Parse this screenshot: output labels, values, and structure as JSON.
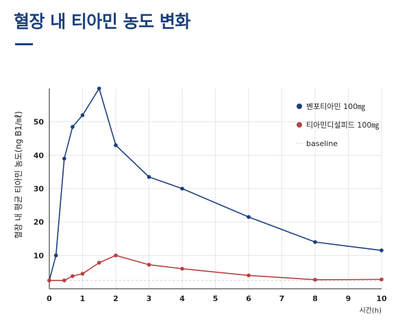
{
  "title": "혈장 내 티아민 농도 변화",
  "chart_data": {
    "type": "line",
    "title": "혈장 내 티아민 농도 변화",
    "xlabel": "시간(h)",
    "ylabel": "혈장 내 평균 티아민 농도(ng B1/㎖)",
    "xlim": [
      0,
      10
    ],
    "ylim": [
      0,
      60
    ],
    "xticks": [
      0,
      1,
      2,
      3,
      4,
      5,
      6,
      7,
      8,
      9,
      10
    ],
    "yticks": [
      10,
      20,
      30,
      40,
      50
    ],
    "grid": true,
    "legend": "top-right",
    "series": [
      {
        "name": "벤포티아민 100㎎",
        "color": "#1b3f7c",
        "points": [
          [
            0,
            2.5
          ],
          [
            0.2,
            10
          ],
          [
            0.45,
            39
          ],
          [
            0.7,
            48.5
          ],
          [
            1,
            52
          ],
          [
            1.5,
            60
          ],
          [
            2,
            43
          ],
          [
            3,
            33.5
          ],
          [
            4,
            30
          ],
          [
            6,
            21.5
          ],
          [
            8,
            14
          ],
          [
            10,
            11.5
          ]
        ]
      },
      {
        "name": "티아민디설피드 100㎎",
        "color": "#b94040",
        "points": [
          [
            0,
            2.5
          ],
          [
            0.45,
            2.5
          ],
          [
            0.7,
            3.8
          ],
          [
            1,
            4.5
          ],
          [
            1.5,
            7.8
          ],
          [
            2,
            10
          ],
          [
            3,
            7.2
          ],
          [
            4,
            6
          ],
          [
            6,
            4
          ],
          [
            8,
            2.7
          ],
          [
            10,
            2.8
          ]
        ]
      }
    ],
    "baseline": {
      "name": "baseline",
      "color": "#cccccc",
      "value": 2.5
    }
  }
}
